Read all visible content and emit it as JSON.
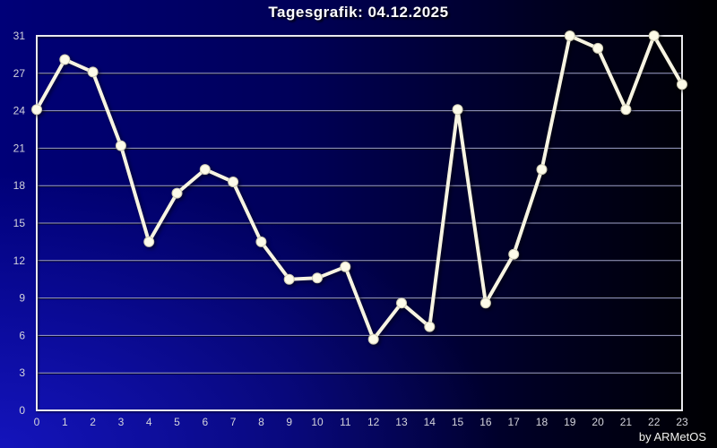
{
  "title": "Tagesgrafik: 04.12.2025",
  "credit": "by ARMetOS",
  "colors": {
    "background_left": "#000078",
    "background_right": "#000002",
    "background_glow_bottom_left": "#2828ff",
    "line": "#f7f4e2",
    "marker_fill": "#fdfbe9",
    "marker_stroke": "#cfccb4",
    "gridline": "#9fa2c8",
    "gridline_shadow": "#000014",
    "frame": "#e9e9ef",
    "tick_label": "#d4d4dc",
    "title_color": "#ffffff"
  },
  "chart_data": {
    "type": "line",
    "title": "Tagesgrafik: 04.12.2025",
    "xlabel": "",
    "ylabel": "",
    "x": [
      0,
      1,
      2,
      3,
      4,
      5,
      6,
      7,
      8,
      9,
      10,
      11,
      12,
      13,
      14,
      15,
      16,
      17,
      18,
      19,
      20,
      21,
      22,
      23
    ],
    "values": [
      24.1,
      28.1,
      27.1,
      21.2,
      13.5,
      17.4,
      19.3,
      18.3,
      13.5,
      10.5,
      10.6,
      11.5,
      5.7,
      8.6,
      6.7,
      24.1,
      8.6,
      12.5,
      19.3,
      31.0,
      29.0,
      24.1,
      31.0,
      26.1
    ],
    "xtick_labels": [
      "0",
      "1",
      "2",
      "3",
      "4",
      "5",
      "6",
      "7",
      "8",
      "9",
      "10",
      "11",
      "12",
      "13",
      "14",
      "15",
      "16",
      "17",
      "18",
      "19",
      "20",
      "21",
      "22",
      "23"
    ],
    "ytick_values": [
      0,
      3,
      6,
      9,
      12,
      15,
      18,
      21,
      24,
      27,
      31
    ],
    "ylim": [
      0,
      31
    ],
    "grid": "horizontal",
    "legend": "none",
    "marker": "circle"
  }
}
